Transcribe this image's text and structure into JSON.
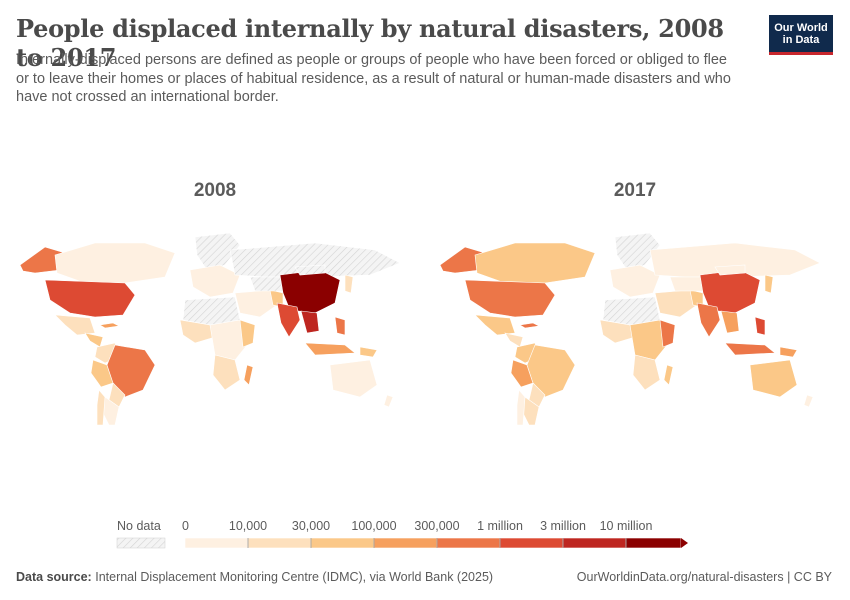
{
  "header": {
    "title": "People displaced internally by natural disasters, 2008 to 2017",
    "subtitle": "Internally-displaced persons are defined as people or groups of people who have been forced or obliged to flee or to leave their homes or places of habitual residence, as a result of natural or human-made disasters and who have not crossed an international border.",
    "logo_line1": "Our World",
    "logo_line2": "in Data"
  },
  "maps": [
    {
      "year": "2008"
    },
    {
      "year": "2017"
    }
  ],
  "colors": {
    "nodata": "#e8e8e8",
    "scale": [
      "#fef0e1",
      "#fde0bd",
      "#fbc888",
      "#f6a05e",
      "#ec7648",
      "#dd4a33",
      "#be2620",
      "#8b0000"
    ],
    "border": "#ffffff",
    "accent": "#c8272d",
    "logo_bg": "#102a4c"
  },
  "legend": {
    "no_data_label": "No data",
    "bin_labels": [
      "0",
      "10,000",
      "30,000",
      "100,000",
      "300,000",
      "1 million",
      "3 million",
      "10 million"
    ]
  },
  "footer": {
    "source_label": "Data source:",
    "source_text": "Internal Displacement Monitoring Centre (IDMC), via World Bank (2025)",
    "url_text": "OurWorldinData.org/natural-disasters | CC BY"
  }
}
